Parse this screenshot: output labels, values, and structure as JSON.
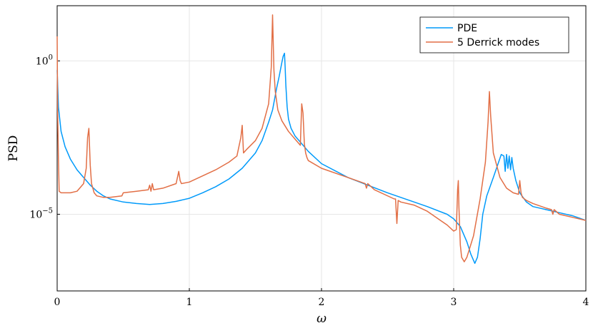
{
  "chart_data": {
    "type": "line",
    "xlabel": "ω",
    "ylabel": "PSD",
    "xlim": [
      0,
      4
    ],
    "ylim_log10": [
      -7.5,
      1.8
    ],
    "yscale": "log",
    "grid": true,
    "legend_position": "top-right",
    "x_ticks": [
      {
        "value": 0,
        "label": "0"
      },
      {
        "value": 1,
        "label": "1"
      },
      {
        "value": 2,
        "label": "2"
      },
      {
        "value": 3,
        "label": "3"
      },
      {
        "value": 4,
        "label": "4"
      }
    ],
    "y_ticks": [
      {
        "value_log10": 0,
        "base": "10",
        "exp": "0"
      },
      {
        "value_log10": -5,
        "base": "10",
        "exp": "−5"
      }
    ],
    "series": [
      {
        "name": "PDE",
        "color": "#009AFA",
        "x": [
          0,
          0.01,
          0.03,
          0.06,
          0.1,
          0.15,
          0.2,
          0.25,
          0.3,
          0.35,
          0.4,
          0.5,
          0.6,
          0.7,
          0.8,
          0.9,
          1.0,
          1.1,
          1.2,
          1.3,
          1.4,
          1.5,
          1.55,
          1.6,
          1.63,
          1.66,
          1.68,
          1.7,
          1.71,
          1.72,
          1.725,
          1.73,
          1.74,
          1.75,
          1.77,
          1.8,
          1.85,
          1.9,
          2.0,
          2.2,
          2.5,
          2.8,
          2.95,
          3.0,
          3.05,
          3.1,
          3.13,
          3.16,
          3.18,
          3.2,
          3.22,
          3.25,
          3.3,
          3.34,
          3.36,
          3.38,
          3.39,
          3.4,
          3.41,
          3.42,
          3.43,
          3.44,
          3.45,
          3.47,
          3.5,
          3.55,
          3.6,
          3.7,
          3.8,
          3.9,
          4.0
        ],
        "log10_y": [
          -0.3,
          -1.5,
          -2.3,
          -2.8,
          -3.2,
          -3.55,
          -3.8,
          -4.05,
          -4.25,
          -4.4,
          -4.5,
          -4.6,
          -4.65,
          -4.68,
          -4.65,
          -4.58,
          -4.48,
          -4.3,
          -4.1,
          -3.85,
          -3.5,
          -3.0,
          -2.6,
          -2.0,
          -1.6,
          -0.9,
          -0.5,
          -0.05,
          0.15,
          0.25,
          -0.2,
          -0.8,
          -1.5,
          -1.9,
          -2.2,
          -2.45,
          -2.7,
          -2.95,
          -3.35,
          -3.8,
          -4.3,
          -4.75,
          -5.0,
          -5.15,
          -5.4,
          -5.9,
          -6.3,
          -6.6,
          -6.4,
          -5.8,
          -5.0,
          -4.4,
          -3.8,
          -3.3,
          -3.05,
          -3.1,
          -3.6,
          -3.05,
          -3.5,
          -3.1,
          -3.55,
          -3.15,
          -3.5,
          -3.9,
          -4.3,
          -4.6,
          -4.75,
          -4.85,
          -4.95,
          -5.05,
          -5.2
        ]
      },
      {
        "name": "5 Derrick modes",
        "color": "#E26F46",
        "x": [
          0,
          0.003,
          0.01,
          0.015,
          0.03,
          0.1,
          0.15,
          0.2,
          0.22,
          0.23,
          0.24,
          0.25,
          0.26,
          0.28,
          0.3,
          0.35,
          0.4,
          0.49,
          0.5,
          0.6,
          0.69,
          0.7,
          0.71,
          0.72,
          0.73,
          0.8,
          0.9,
          0.92,
          0.93,
          0.94,
          1.0,
          1.1,
          1.2,
          1.3,
          1.36,
          1.39,
          1.4,
          1.41,
          1.43,
          1.5,
          1.55,
          1.6,
          1.62,
          1.63,
          1.64,
          1.65,
          1.67,
          1.7,
          1.75,
          1.8,
          1.84,
          1.85,
          1.86,
          1.87,
          1.88,
          1.89,
          1.9,
          2.0,
          2.2,
          2.33,
          2.34,
          2.35,
          2.4,
          2.55,
          2.56,
          2.57,
          2.58,
          2.6,
          2.7,
          2.8,
          2.9,
          2.95,
          3.0,
          3.02,
          3.03,
          3.035,
          3.04,
          3.05,
          3.06,
          3.08,
          3.1,
          3.15,
          3.2,
          3.24,
          3.26,
          3.27,
          3.28,
          3.3,
          3.35,
          3.4,
          3.45,
          3.49,
          3.5,
          3.51,
          3.52,
          3.55,
          3.6,
          3.7,
          3.74,
          3.75,
          3.76,
          3.8,
          3.9,
          4.0
        ],
        "log10_y": [
          0.8,
          -1.5,
          -3.2,
          -4.25,
          -4.3,
          -4.3,
          -4.25,
          -4.0,
          -3.5,
          -2.5,
          -2.2,
          -3.4,
          -4.0,
          -4.3,
          -4.4,
          -4.45,
          -4.45,
          -4.4,
          -4.3,
          -4.25,
          -4.2,
          -4.05,
          -4.25,
          -4.0,
          -4.2,
          -4.15,
          -4.0,
          -3.6,
          -3.9,
          -4.0,
          -3.95,
          -3.75,
          -3.55,
          -3.3,
          -3.1,
          -2.5,
          -2.1,
          -3.0,
          -2.9,
          -2.6,
          -2.2,
          -1.4,
          -0.2,
          1.5,
          -0.3,
          -1.0,
          -1.6,
          -1.95,
          -2.3,
          -2.55,
          -2.75,
          -1.4,
          -1.7,
          -2.7,
          -3.0,
          -3.15,
          -3.25,
          -3.5,
          -3.8,
          -4.0,
          -4.15,
          -4.0,
          -4.2,
          -4.5,
          -4.5,
          -5.3,
          -4.55,
          -4.6,
          -4.7,
          -4.9,
          -5.2,
          -5.35,
          -5.55,
          -5.5,
          -4.2,
          -3.9,
          -4.8,
          -6.0,
          -6.4,
          -6.55,
          -6.4,
          -5.7,
          -4.5,
          -3.3,
          -2.0,
          -1.0,
          -1.8,
          -3.0,
          -3.8,
          -4.15,
          -4.3,
          -4.35,
          -3.9,
          -4.3,
          -4.45,
          -4.55,
          -4.65,
          -4.8,
          -4.85,
          -5.0,
          -4.85,
          -5.0,
          -5.1,
          -5.2
        ]
      }
    ]
  }
}
